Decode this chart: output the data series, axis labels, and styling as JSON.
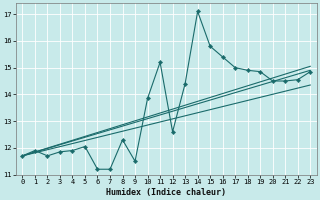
{
  "xlabel": "Humidex (Indice chaleur)",
  "bg_color": "#c8eaea",
  "line_color": "#1a6b6b",
  "grid_color": "#ffffff",
  "xlim": [
    -0.5,
    23.5
  ],
  "ylim": [
    11,
    17.4
  ],
  "xticks": [
    0,
    1,
    2,
    3,
    4,
    5,
    6,
    7,
    8,
    9,
    10,
    11,
    12,
    13,
    14,
    15,
    16,
    17,
    18,
    19,
    20,
    21,
    22,
    23
  ],
  "yticks": [
    11,
    12,
    13,
    14,
    15,
    16,
    17
  ],
  "main_x": [
    0,
    1,
    2,
    3,
    4,
    5,
    6,
    7,
    8,
    9,
    10,
    11,
    12,
    13,
    14,
    15,
    16,
    17,
    18,
    19,
    20,
    21,
    22,
    23
  ],
  "main_y": [
    11.7,
    11.9,
    11.7,
    11.85,
    11.9,
    12.05,
    11.2,
    11.2,
    12.3,
    11.5,
    13.85,
    15.2,
    12.6,
    14.4,
    17.1,
    15.8,
    15.4,
    15.0,
    14.9,
    14.85,
    14.5,
    14.5,
    14.55,
    14.85
  ],
  "straight_lines": [
    {
      "x0": 0,
      "y0": 11.7,
      "x1": 23,
      "y1": 14.9
    },
    {
      "x0": 0,
      "y0": 11.7,
      "x1": 23,
      "y1": 14.35
    },
    {
      "x0": 0,
      "y0": 11.7,
      "x1": 23,
      "y1": 15.05
    }
  ]
}
